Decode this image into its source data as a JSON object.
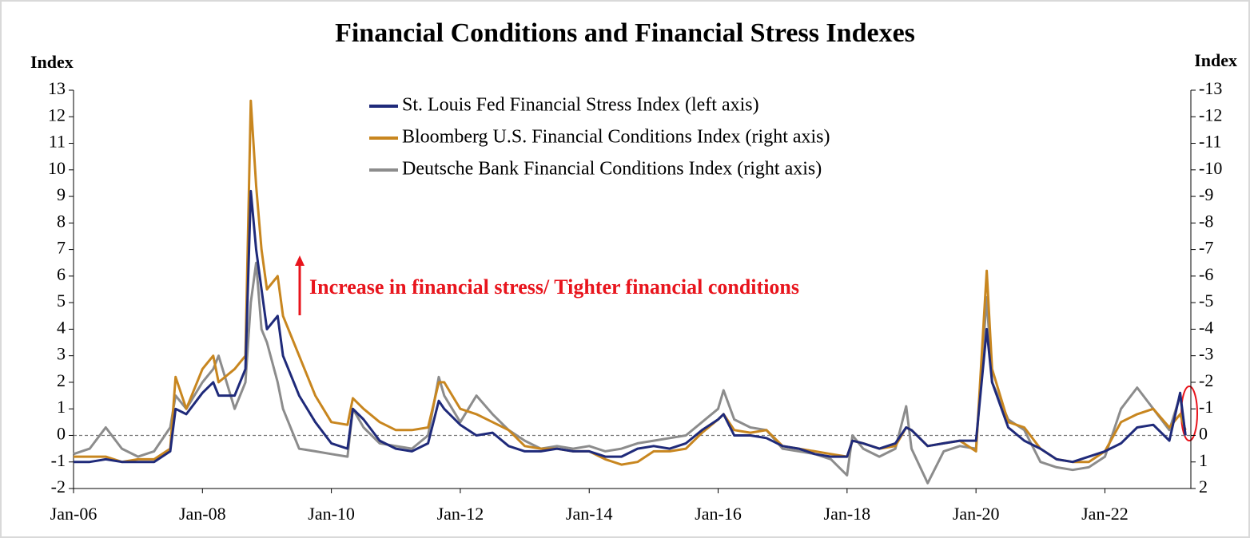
{
  "chart_data": {
    "type": "line",
    "title": "Financial Conditions and Financial Stress Indexes",
    "ylabel": "Index",
    "y2label": "Index",
    "annotation": "Increase in financial stress/ Tighter financial conditions",
    "x": [
      "Jan-06",
      "Apr-06",
      "Jul-06",
      "Oct-06",
      "Jan-07",
      "Apr-07",
      "Jul-07",
      "Aug-07",
      "Oct-07",
      "Jan-08",
      "Mar-08",
      "Apr-08",
      "Jul-08",
      "Sep-08",
      "Oct-08",
      "Nov-08",
      "Dec-08",
      "Jan-09",
      "Mar-09",
      "Apr-09",
      "Jul-09",
      "Oct-09",
      "Jan-10",
      "Apr-10",
      "May-10",
      "Jul-10",
      "Oct-10",
      "Jan-11",
      "Apr-11",
      "Jul-11",
      "Sep-11",
      "Oct-11",
      "Jan-12",
      "Apr-12",
      "Jul-12",
      "Oct-12",
      "Jan-13",
      "Apr-13",
      "Jul-13",
      "Oct-13",
      "Jan-14",
      "Apr-14",
      "Jul-14",
      "Oct-14",
      "Jan-15",
      "Apr-15",
      "Jul-15",
      "Oct-15",
      "Jan-16",
      "Feb-16",
      "Apr-16",
      "Jul-16",
      "Oct-16",
      "Jan-17",
      "Apr-17",
      "Jul-17",
      "Oct-17",
      "Jan-18",
      "Feb-18",
      "Apr-18",
      "Jul-18",
      "Oct-18",
      "Dec-18",
      "Jan-19",
      "Apr-19",
      "Jul-19",
      "Oct-19",
      "Jan-20",
      "Mar-20",
      "Apr-20",
      "Jul-20",
      "Oct-20",
      "Jan-21",
      "Apr-21",
      "Jul-21",
      "Oct-21",
      "Jan-22",
      "Apr-22",
      "Jul-22",
      "Oct-22",
      "Jan-23",
      "Mar-23",
      "Apr-23"
    ],
    "xlim": [
      "Jan-06",
      "May-23"
    ],
    "xticks": [
      "Jan-06",
      "Jan-08",
      "Jan-10",
      "Jan-12",
      "Jan-14",
      "Jan-16",
      "Jan-18",
      "Jan-20",
      "Jan-22"
    ],
    "ylim": [
      -2,
      13
    ],
    "yticks": [
      -2,
      -1,
      0,
      1,
      2,
      3,
      4,
      5,
      6,
      7,
      8,
      9,
      10,
      11,
      12,
      13
    ],
    "y2lim": [
      2,
      -13
    ],
    "y2ticks": [
      2,
      1,
      0,
      -1,
      -2,
      -3,
      -4,
      -5,
      -6,
      -7,
      -8,
      -9,
      -10,
      -11,
      -12,
      -13
    ],
    "grid": false,
    "series": [
      {
        "name": "St. Louis Fed Financial Stress Index (left axis)",
        "color": "#1f2a7a",
        "values": [
          -1.0,
          -1.0,
          -0.9,
          -1.0,
          -1.0,
          -1.0,
          -0.6,
          1.0,
          0.8,
          1.6,
          2.0,
          1.5,
          1.5,
          2.5,
          9.2,
          7.0,
          5.5,
          4.0,
          4.5,
          3.0,
          1.5,
          0.5,
          -0.3,
          -0.5,
          1.0,
          0.6,
          -0.2,
          -0.5,
          -0.6,
          -0.3,
          1.3,
          1.0,
          0.4,
          0.0,
          0.1,
          -0.4,
          -0.6,
          -0.6,
          -0.5,
          -0.6,
          -0.6,
          -0.8,
          -0.8,
          -0.5,
          -0.4,
          -0.5,
          -0.3,
          0.2,
          0.6,
          0.8,
          0.0,
          0.0,
          -0.1,
          -0.4,
          -0.5,
          -0.7,
          -0.8,
          -0.8,
          -0.2,
          -0.3,
          -0.5,
          -0.3,
          0.3,
          0.2,
          -0.4,
          -0.3,
          -0.2,
          -0.2,
          4.0,
          2.0,
          0.3,
          -0.2,
          -0.5,
          -0.9,
          -1.0,
          -0.8,
          -0.6,
          -0.3,
          0.3,
          0.4,
          -0.2,
          1.6,
          0.0
        ]
      },
      {
        "name": "Bloomberg U.S. Financial Conditions Index (right axis)",
        "color": "#c8861f",
        "axis": "y2",
        "values": [
          0.8,
          0.8,
          0.8,
          1.0,
          0.9,
          0.9,
          0.5,
          -2.2,
          -1.0,
          -2.5,
          -3.0,
          -2.0,
          -2.5,
          -3.0,
          -12.6,
          -9.4,
          -7.0,
          -5.5,
          -6.0,
          -4.5,
          -3.0,
          -1.5,
          -0.5,
          -0.4,
          -1.4,
          -1.0,
          -0.5,
          -0.2,
          -0.2,
          -0.3,
          -2.0,
          -2.0,
          -1.0,
          -0.8,
          -0.5,
          -0.2,
          0.4,
          0.5,
          0.5,
          0.6,
          0.6,
          0.9,
          1.1,
          1.0,
          0.6,
          0.6,
          0.5,
          -0.1,
          -0.6,
          -0.8,
          -0.2,
          -0.1,
          -0.2,
          0.4,
          0.5,
          0.6,
          0.7,
          0.8,
          0.2,
          0.3,
          0.5,
          0.4,
          -0.3,
          -0.2,
          0.4,
          0.3,
          0.2,
          0.6,
          -6.2,
          -2.5,
          -0.5,
          -0.3,
          0.5,
          0.9,
          1.0,
          1.0,
          0.6,
          -0.5,
          -0.8,
          -1.0,
          -0.3,
          -0.8,
          -0.2
        ]
      },
      {
        "name": "Deutsche Bank Financial Conditions Index (right axis)",
        "color": "#8c8c8c",
        "axis": "y2",
        "values": [
          0.7,
          0.5,
          -0.3,
          0.5,
          0.8,
          0.6,
          -0.3,
          -1.5,
          -1.0,
          -2.0,
          -2.5,
          -3.0,
          -1.0,
          -2.0,
          -5.0,
          -6.5,
          -4.0,
          -3.5,
          -2.0,
          -1.0,
          0.5,
          0.6,
          0.7,
          0.8,
          -1.0,
          -0.3,
          0.3,
          0.4,
          0.5,
          0.0,
          -2.2,
          -1.5,
          -0.5,
          -1.5,
          -0.8,
          -0.2,
          0.2,
          0.5,
          0.4,
          0.5,
          0.4,
          0.6,
          0.5,
          0.3,
          0.2,
          0.1,
          0.0,
          -0.5,
          -1.0,
          -1.7,
          -0.6,
          -0.3,
          -0.2,
          0.5,
          0.6,
          0.7,
          0.9,
          1.5,
          0.0,
          0.5,
          0.8,
          0.5,
          -1.1,
          0.5,
          1.8,
          0.6,
          0.4,
          0.5,
          -5.2,
          -2.0,
          -0.6,
          -0.2,
          1.0,
          1.2,
          1.3,
          1.2,
          0.8,
          -1.0,
          -1.8,
          -1.0,
          -0.2,
          -1.5,
          0.0
        ]
      }
    ]
  }
}
